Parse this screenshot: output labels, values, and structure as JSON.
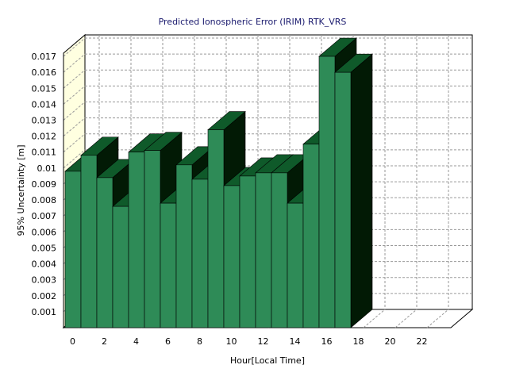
{
  "chart_data": {
    "type": "bar",
    "title": "Predicted Ionospheric Error (IRIM) RTK_VRS",
    "xlabel": "Hour[Local Time]",
    "ylabel": "95% Uncertainty [m]",
    "x": [
      0,
      1,
      2,
      3,
      4,
      5,
      6,
      7,
      8,
      9,
      10,
      11,
      12,
      13,
      14,
      15,
      16,
      17
    ],
    "values": [
      0.0098,
      0.0108,
      0.0094,
      0.0076,
      0.011,
      0.0111,
      0.0078,
      0.0102,
      0.0093,
      0.0124,
      0.0089,
      0.0095,
      0.0097,
      0.0097,
      0.0078,
      0.0115,
      0.017,
      0.016
    ],
    "xlim": [
      0,
      24
    ],
    "ylim": [
      0,
      0.0172
    ],
    "x_ticks": [
      "0",
      "2",
      "4",
      "6",
      "8",
      "10",
      "12",
      "14",
      "16",
      "18",
      "20",
      "22"
    ],
    "y_ticks": [
      "0.001",
      "0.002",
      "0.003",
      "0.004",
      "0.005",
      "0.006",
      "0.007",
      "0.008",
      "0.009",
      "0.01",
      "0.011",
      "0.012",
      "0.013",
      "0.014",
      "0.015",
      "0.016",
      "0.017"
    ],
    "grid": true,
    "style": "3d-bar",
    "colors": {
      "bar_front": "#2e8b57",
      "bar_top": "#0f5a2a",
      "bar_side": "#021a05",
      "back_wall": "#ffffff",
      "side_wall": "#ffffe0"
    }
  }
}
